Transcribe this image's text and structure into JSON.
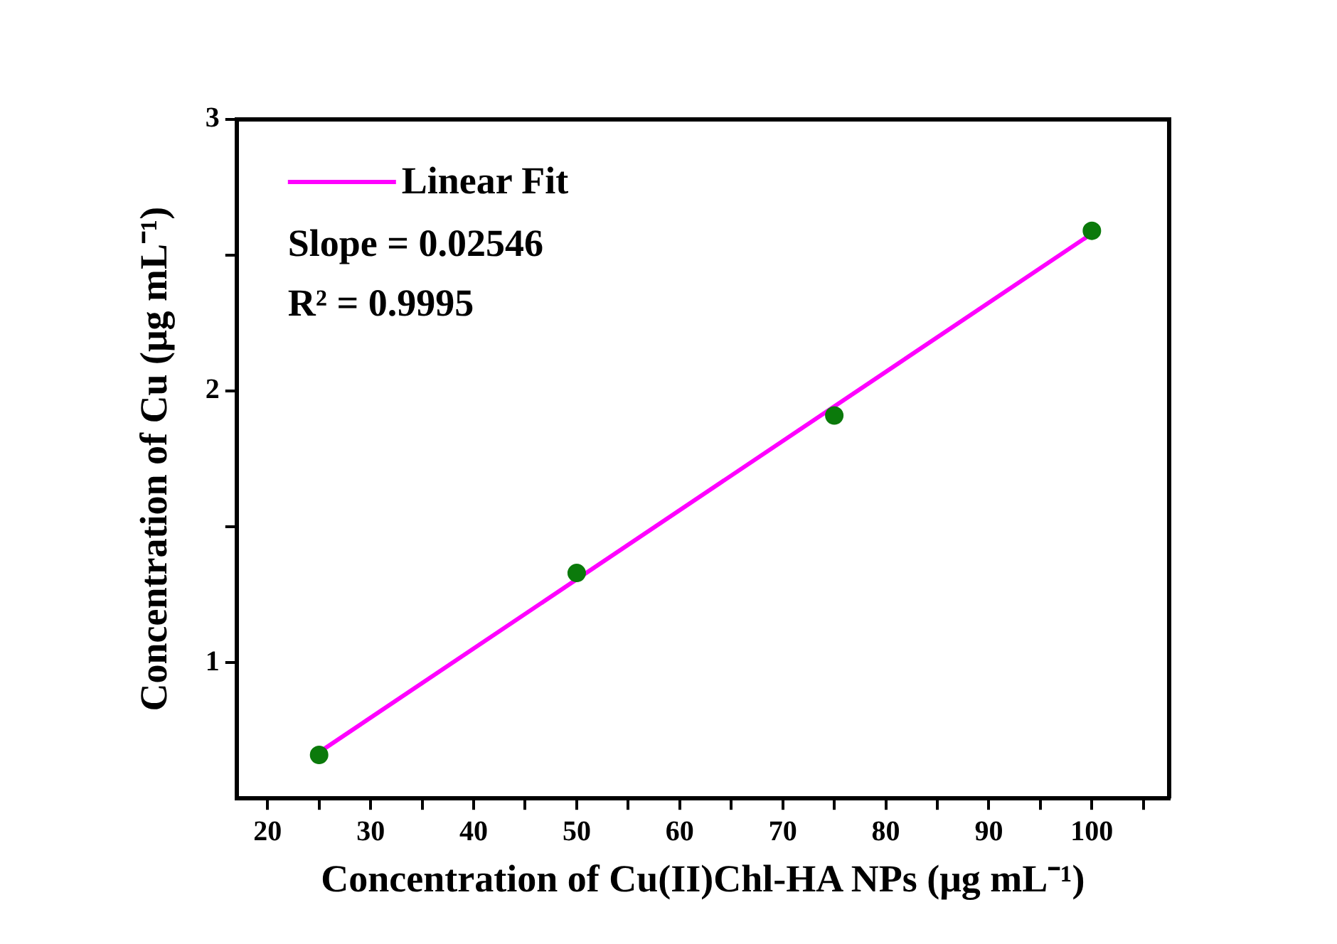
{
  "chart_data": {
    "type": "scatter",
    "xlabel": "Concentration of Cu(II)Chl-HA NPs (μg mL⁻¹)",
    "ylabel": "Concentration of Cu (μg mL⁻¹)",
    "xlim": [
      17,
      107.5
    ],
    "xticks": [
      20,
      {
        "value": 25,
        "label": null
      },
      30,
      {
        "value": 35,
        "label": null
      },
      40,
      {
        "value": 45,
        "label": null
      },
      50,
      {
        "value": 55,
        "label": null
      },
      60,
      {
        "value": 65,
        "label": null
      },
      70,
      {
        "value": 75,
        "label": null
      },
      80,
      {
        "value": 85,
        "label": null
      },
      90,
      {
        "value": 95,
        "label": null
      },
      100,
      {
        "value": 105,
        "label": null
      }
    ],
    "ylim": [
      0.5,
      3
    ],
    "yticks": [
      1,
      {
        "value": 1.5,
        "label": null
      },
      2,
      {
        "value": 2.5,
        "label": null
      },
      3
    ],
    "series": [
      {
        "color": "#0b7a0b",
        "marker": "circle",
        "x": [
          25,
          50,
          75,
          100
        ],
        "values": [
          0.66,
          1.33,
          1.91,
          2.59
        ]
      },
      {
        "type": "line",
        "name": "Linear Fit",
        "color": "#ff00ff",
        "marker": "none",
        "x": [
          25,
          100
        ],
        "values": [
          0.67,
          2.58
        ]
      }
    ],
    "legend": "top left",
    "annotations": [
      "Slope = 0.02546",
      "R² = 0.9995"
    ]
  }
}
